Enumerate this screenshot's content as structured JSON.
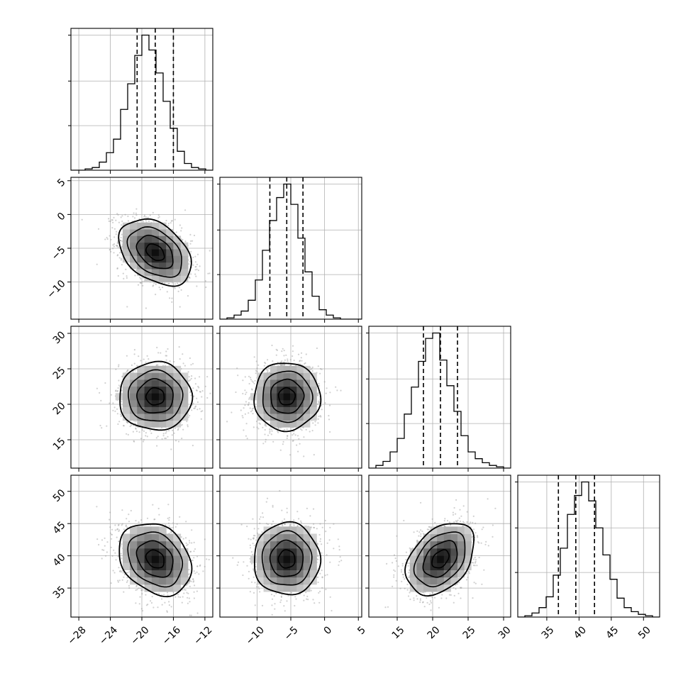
{
  "chart_data": {
    "type": "corner",
    "n_params": 4,
    "labels": [
      "",
      "",
      "",
      ""
    ],
    "grid": true,
    "params": [
      {
        "range": [
          -29,
          -11
        ],
        "ticks": [
          -28,
          -24,
          -20,
          -16,
          -12
        ],
        "tick_labels": [
          "−28",
          "−24",
          "−20",
          "−16",
          "−12"
        ],
        "quantiles": [
          -20.6,
          -18.3,
          -16.0
        ],
        "hist_values": [
          0,
          0,
          1,
          2,
          6,
          13,
          23,
          45,
          64,
          85,
          100,
          89,
          72,
          51,
          31,
          14,
          5,
          2,
          1,
          0
        ]
      },
      {
        "range": [
          -15.5,
          5.5
        ],
        "ticks": [
          -10,
          -5,
          0,
          5
        ],
        "tick_labels": [
          "−10",
          "−5",
          "0",
          "5"
        ],
        "quantiles": [
          -8.1,
          -5.6,
          -3.2
        ],
        "hist_values": [
          0,
          1,
          3,
          6,
          14,
          29,
          51,
          73,
          90,
          100,
          85,
          60,
          35,
          17,
          7,
          3,
          1,
          0,
          0,
          0
        ]
      },
      {
        "range": [
          11,
          31
        ],
        "ticks": [
          15,
          20,
          25,
          30
        ],
        "tick_labels": [
          "15",
          "20",
          "25",
          "30"
        ],
        "quantiles": [
          18.7,
          21.1,
          23.5
        ],
        "hist_values": [
          0,
          2,
          5,
          12,
          22,
          40,
          60,
          79,
          96,
          100,
          80,
          61,
          42,
          24,
          12,
          7,
          4,
          2,
          1,
          0
        ]
      },
      {
        "range": [
          30.5,
          52.5
        ],
        "ticks": [
          35,
          40,
          45,
          50
        ],
        "tick_labels": [
          "35",
          "40",
          "45",
          "50"
        ],
        "quantiles": [
          36.8,
          39.5,
          42.4
        ],
        "hist_values": [
          0,
          1,
          3,
          7,
          15,
          31,
          51,
          76,
          90,
          100,
          86,
          66,
          46,
          28,
          14,
          7,
          4,
          2,
          1,
          0
        ]
      }
    ],
    "means": [
      -18.3,
      -5.6,
      21.1,
      39.5
    ],
    "sigmas": [
      2.3,
      2.45,
      2.4,
      2.8
    ],
    "correlations": [
      [
        1.0,
        -0.38,
        0.0,
        -0.25
      ],
      [
        -0.38,
        1.0,
        0.0,
        0.0
      ],
      [
        0.0,
        0.0,
        1.0,
        0.38
      ],
      [
        -0.25,
        0.0,
        0.38,
        1.0
      ]
    ],
    "contour_levels_sigma": [
      0.5,
      1.0,
      1.5,
      2.0
    ],
    "colors": {
      "axis": "#000000",
      "grid": "#b0b0b0",
      "points": "#9a9a9a",
      "density_dark": "#000000"
    }
  }
}
